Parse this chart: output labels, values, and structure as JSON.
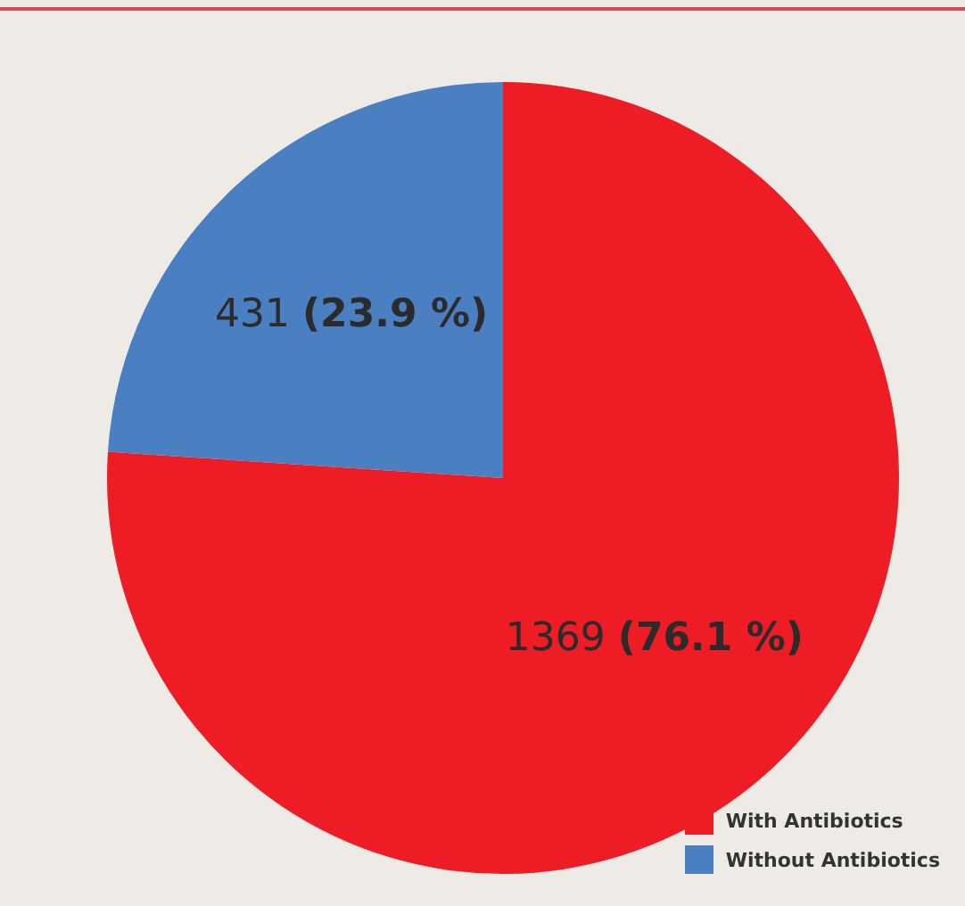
{
  "chart_data": {
    "type": "pie",
    "categories": [
      "With Antibiotics",
      "Without Antibiotics"
    ],
    "values": [
      1369,
      431
    ],
    "colors": [
      "#ee1c25",
      "#4a7fc1"
    ],
    "value_labels": [
      "1369 (76.1 %)",
      "431 (23.9 %)"
    ],
    "legend": "bottom right"
  }
}
